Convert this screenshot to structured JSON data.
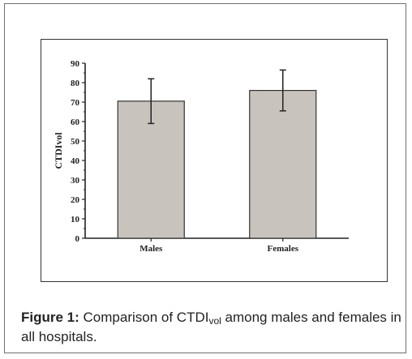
{
  "caption": {
    "label": "Figure 1:",
    "text_before": " Comparison of CTDI",
    "subscript": "vol",
    "text_after": " among males and females in all hospitals."
  },
  "chart_data": {
    "type": "bar",
    "categories": [
      "Males",
      "Females"
    ],
    "values": [
      70.5,
      76
    ],
    "error": [
      11.5,
      10.5
    ],
    "ylabel": "CTDIvol",
    "xlabel": "",
    "ylim": [
      0,
      90
    ],
    "yticks": [
      0,
      10,
      20,
      30,
      40,
      50,
      60,
      70,
      80,
      90
    ],
    "grid": false,
    "bar_color": "#c8c4bd",
    "bar_edge_color": "#333333"
  }
}
